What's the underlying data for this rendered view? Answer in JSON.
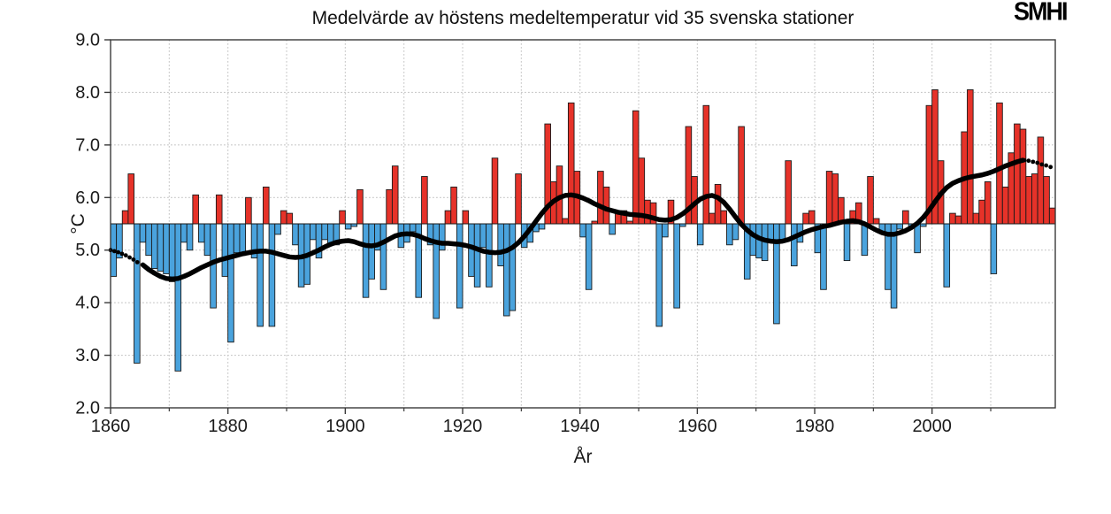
{
  "header": {
    "logo_text": "SMHI"
  },
  "chart_data": {
    "type": "bar",
    "title": "Medelvärde av höstens medeltemperatur vid 35 svenska stationer",
    "xlabel": "År",
    "ylabel": "°C",
    "ylim": [
      2.0,
      9.0
    ],
    "xlim": [
      1860,
      2021
    ],
    "grid": true,
    "legend_position": "none",
    "baseline": 5.5,
    "colors": {
      "above_baseline": "#e63229",
      "below_baseline": "#4aa3dd",
      "bar_outline": "#1a1a1a",
      "trend_line": "#000000",
      "gridline": "#c8c8c8",
      "axis_frame": "#3a3a3a",
      "text": "#1a1a1a"
    },
    "ytick_labels": [
      "2.0",
      "3.0",
      "4.0",
      "5.0",
      "6.0",
      "7.0",
      "8.0",
      "9.0"
    ],
    "yticks": [
      2,
      3,
      4,
      5,
      6,
      7,
      8,
      9
    ],
    "xtick_major_labels": [
      "1860",
      "1880",
      "1900",
      "1920",
      "1940",
      "1960",
      "1980",
      "2000"
    ],
    "xticks_major": [
      1860,
      1880,
      1900,
      1920,
      1940,
      1960,
      1980,
      2000
    ],
    "xticks_minor": [
      1870,
      1890,
      1910,
      1930,
      1950,
      1970,
      1990,
      2010
    ],
    "gridline_decades": [
      1870,
      1880,
      1890,
      1900,
      1910,
      1920,
      1930,
      1940,
      1950,
      1960,
      1970,
      1980,
      1990,
      2000,
      2010
    ],
    "start_year": 1860,
    "values": [
      4.5,
      4.85,
      5.75,
      6.45,
      2.85,
      5.15,
      4.9,
      4.65,
      4.6,
      4.55,
      4.4,
      2.7,
      5.15,
      5.0,
      6.05,
      5.15,
      4.9,
      3.9,
      6.05,
      4.5,
      3.25,
      4.95,
      4.9,
      6.0,
      4.85,
      3.55,
      6.2,
      3.55,
      5.3,
      5.75,
      5.7,
      5.1,
      4.3,
      4.35,
      5.2,
      4.85,
      5.2,
      5.1,
      5.1,
      5.75,
      5.4,
      5.45,
      6.15,
      4.1,
      4.45,
      5.0,
      4.25,
      6.15,
      6.6,
      5.05,
      5.15,
      5.35,
      4.1,
      6.4,
      5.1,
      3.7,
      5.0,
      5.75,
      6.2,
      3.9,
      5.75,
      4.5,
      4.3,
      5.05,
      4.3,
      6.75,
      4.7,
      3.75,
      3.85,
      6.45,
      5.05,
      5.15,
      5.35,
      5.4,
      7.4,
      6.3,
      6.6,
      5.6,
      7.8,
      6.5,
      5.25,
      4.25,
      5.55,
      6.5,
      6.2,
      5.3,
      5.7,
      5.75,
      5.55,
      7.65,
      6.75,
      5.95,
      5.9,
      3.55,
      5.25,
      5.95,
      3.9,
      5.45,
      7.35,
      6.4,
      5.1,
      7.75,
      5.7,
      6.25,
      5.75,
      5.1,
      5.2,
      7.35,
      4.45,
      4.9,
      4.85,
      4.8,
      5.2,
      3.6,
      5.15,
      6.7,
      4.7,
      5.15,
      5.7,
      5.75,
      4.95,
      4.25,
      6.5,
      6.45,
      6.0,
      4.8,
      5.75,
      5.9,
      4.9,
      6.4,
      5.6,
      5.35,
      4.25,
      3.9,
      5.4,
      5.75,
      5.45,
      4.95,
      5.45,
      7.75,
      8.05,
      6.7,
      4.3,
      5.7,
      5.65,
      7.25,
      8.05,
      5.7,
      5.95,
      6.3,
      4.55,
      7.8,
      6.2,
      6.85,
      7.4,
      7.3,
      6.4,
      6.45,
      7.15,
      6.4,
      5.8
    ],
    "trend": {
      "solid_start_year": 1865,
      "solid_values": [
        4.72,
        4.63,
        4.56,
        4.5,
        4.46,
        4.45,
        4.46,
        4.5,
        4.55,
        4.61,
        4.67,
        4.72,
        4.77,
        4.81,
        4.84,
        4.87,
        4.9,
        4.93,
        4.95,
        4.97,
        4.98,
        4.98,
        4.96,
        4.93,
        4.9,
        4.87,
        4.86,
        4.87,
        4.9,
        4.95,
        5.0,
        5.06,
        5.11,
        5.15,
        5.17,
        5.18,
        5.16,
        5.12,
        5.09,
        5.08,
        5.1,
        5.15,
        5.21,
        5.27,
        5.3,
        5.31,
        5.3,
        5.27,
        5.22,
        5.18,
        5.15,
        5.13,
        5.13,
        5.12,
        5.11,
        5.09,
        5.06,
        5.02,
        4.98,
        4.96,
        4.95,
        4.96,
        4.99,
        5.05,
        5.14,
        5.26,
        5.4,
        5.55,
        5.7,
        5.83,
        5.93,
        6.0,
        6.04,
        6.05,
        6.03,
        5.99,
        5.94,
        5.88,
        5.83,
        5.78,
        5.75,
        5.72,
        5.7,
        5.68,
        5.67,
        5.66,
        5.64,
        5.61,
        5.58,
        5.57,
        5.58,
        5.62,
        5.69,
        5.78,
        5.88,
        5.97,
        6.02,
        6.04,
        6.0,
        5.91,
        5.78,
        5.63,
        5.49,
        5.38,
        5.29,
        5.23,
        5.19,
        5.17,
        5.16,
        5.17,
        5.2,
        5.25,
        5.3,
        5.35,
        5.39,
        5.42,
        5.45,
        5.47,
        5.5,
        5.53,
        5.55,
        5.56,
        5.54,
        5.5,
        5.44,
        5.38,
        5.33,
        5.3,
        5.3,
        5.33,
        5.37,
        5.43,
        5.51,
        5.62,
        5.76,
        5.92,
        6.07,
        6.19,
        6.27,
        6.32,
        6.36,
        6.39,
        6.41,
        6.43,
        6.46,
        6.5,
        6.55,
        6.6,
        6.64,
        6.68,
        6.71
      ],
      "dotted_start": [
        [
          1860,
          5.0
        ],
        [
          1860.65,
          4.98
        ],
        [
          1861.3,
          4.96
        ],
        [
          1861.95,
          4.93
        ],
        [
          1862.6,
          4.9
        ],
        [
          1863.25,
          4.86
        ],
        [
          1863.9,
          4.82
        ],
        [
          1864.55,
          4.77
        ]
      ],
      "dotted_end": [
        [
          2015.7,
          6.71
        ],
        [
          2016.45,
          6.7
        ],
        [
          2017.2,
          6.68
        ],
        [
          2017.95,
          6.66
        ],
        [
          2018.7,
          6.63
        ],
        [
          2019.45,
          6.61
        ],
        [
          2020.2,
          6.58
        ]
      ]
    }
  }
}
